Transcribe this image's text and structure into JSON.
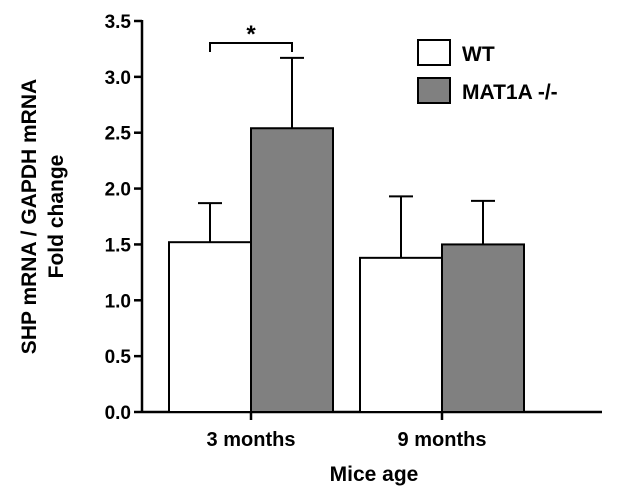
{
  "chart_data": {
    "type": "bar",
    "categories": [
      "3 months",
      "9 months"
    ],
    "series": [
      {
        "name": "WT",
        "values": [
          1.52,
          1.38
        ],
        "errors": [
          0.35,
          0.55
        ],
        "color": "#ffffff"
      },
      {
        "name": "MAT1A -/-",
        "values": [
          2.54,
          1.5
        ],
        "errors": [
          0.63,
          0.39
        ],
        "color": "#808080"
      }
    ],
    "xlabel": "Mice age",
    "ylabel_lines": [
      "SHP mRNA / GAPDH mRNA",
      "Fold change"
    ],
    "ylim": [
      0,
      3.5
    ],
    "yticks": [
      0.0,
      0.5,
      1.0,
      1.5,
      2.0,
      2.5,
      3.0,
      3.5
    ],
    "ytick_labels": [
      "0.0",
      "0.5",
      "1.0",
      "1.5",
      "2.0",
      "2.5",
      "3.0",
      "3.5"
    ],
    "grid": false,
    "legend_position": "top-right",
    "annotations": [
      {
        "text": "*",
        "category": "3 months"
      }
    ]
  }
}
